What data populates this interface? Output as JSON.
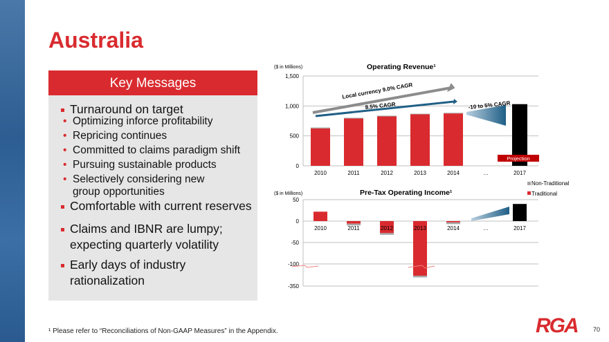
{
  "title": "Australia",
  "key_messages": {
    "header": "Key Messages",
    "bullets": [
      {
        "text": "Turnaround on target",
        "sub": [
          "Optimizing inforce profitability",
          "Repricing continues",
          "Committed to claims paradigm shift",
          "Pursuing sustainable products",
          "Selectively considering new group opportunities"
        ]
      },
      {
        "text": "Comfortable with current reserves"
      },
      {
        "text": "Claims and IBNR are lumpy; expecting quarterly volatility"
      },
      {
        "text": "Early days of industry rationalization"
      }
    ]
  },
  "footnote": "¹ Please refer to “Reconciliations of Non-GAAP Measures” in the Appendix.",
  "logo": "RGA",
  "page_number": "70",
  "colors": {
    "red": "#d92b2f",
    "gray": "#a6a6a6",
    "black": "#000000",
    "blue": "#1f5f86"
  },
  "chart_data": [
    {
      "type": "bar",
      "stacked": true,
      "title": "Operating Revenue¹",
      "unit_label": "($ in Millions)",
      "categories": [
        "2010",
        "2011",
        "2012",
        "2013",
        "2014",
        "…",
        "2017"
      ],
      "series": [
        {
          "name": "Traditional",
          "values": [
            625,
            790,
            825,
            860,
            875,
            null,
            null
          ]
        },
        {
          "name": "Non-Traditional",
          "values": [
            15,
            12,
            12,
            10,
            10,
            null,
            null
          ]
        },
        {
          "name": "Projection",
          "values": [
            null,
            null,
            null,
            null,
            null,
            null,
            1030
          ]
        }
      ],
      "yticks": [
        "0",
        "500",
        "1,000",
        "1,500"
      ],
      "ylim": [
        0,
        1500
      ],
      "annotations": [
        "Local currency 9.0% CAGR",
        "8.5% CAGR",
        "-10 to 5% CAGR",
        "Projection"
      ],
      "legend": [
        "Non-Traditional",
        "Traditional"
      ],
      "legend_position": "right"
    },
    {
      "type": "bar",
      "stacked": true,
      "title": "Pre-Tax Operating Income¹",
      "unit_label": "($ in Millions)",
      "categories": [
        "2010",
        "2011",
        "2012",
        "2013",
        "2014",
        "…",
        "2017"
      ],
      "series": [
        {
          "name": "Traditional",
          "values": [
            22,
            -6,
            -28,
            -330,
            -3,
            null,
            null
          ]
        },
        {
          "name": "Non-Traditional",
          "values": [
            0,
            -4,
            -4,
            -4,
            -4,
            null,
            null
          ]
        },
        {
          "name": "Projection",
          "values": [
            null,
            null,
            null,
            null,
            null,
            null,
            40
          ]
        }
      ],
      "yticks": [
        "50",
        "0",
        "-50",
        "-100",
        "-350"
      ],
      "ylim": [
        -350,
        50
      ],
      "axis_break": "between -100 and -350"
    }
  ]
}
